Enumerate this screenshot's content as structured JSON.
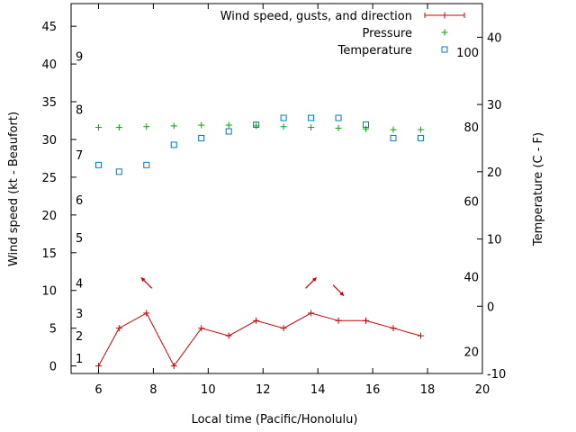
{
  "chart_data": {
    "type": "line",
    "xlabel": "Local time (Pacific/Honolulu)",
    "ylabel_left": "Wind speed (kt - Beaufort)",
    "ylabel_right": "Temperature (C - F)",
    "xlim": [
      5,
      20
    ],
    "ylim_left": [
      -1,
      48
    ],
    "ylim_right_c": [
      -10,
      45
    ],
    "x_ticks": [
      6,
      8,
      10,
      12,
      14,
      16,
      18,
      20
    ],
    "y_left_ticks": [
      0,
      5,
      10,
      15,
      20,
      25,
      30,
      35,
      40,
      45
    ],
    "y_right_ticks_c": [
      -10,
      0,
      10,
      20,
      30,
      40
    ],
    "beaufort_labels": [
      {
        "label": "1",
        "kt": 1
      },
      {
        "label": "2",
        "kt": 4
      },
      {
        "label": "3",
        "kt": 7
      },
      {
        "label": "4",
        "kt": 11
      },
      {
        "label": "5",
        "kt": 17
      },
      {
        "label": "6",
        "kt": 22
      },
      {
        "label": "7",
        "kt": 28
      },
      {
        "label": "8",
        "kt": 34
      },
      {
        "label": "9",
        "kt": 41
      }
    ],
    "fahrenheit_labels": [
      {
        "label": "20",
        "c": -6.7
      },
      {
        "label": "40",
        "c": 4.4
      },
      {
        "label": "60",
        "c": 15.6
      },
      {
        "label": "80",
        "c": 26.7
      },
      {
        "label": "100",
        "c": 37.8
      }
    ],
    "legend": [
      {
        "name": "Wind speed, gusts, and direction",
        "color": "#cc0000",
        "marker": "plus-line"
      },
      {
        "name": "Pressure",
        "color": "#00aa00",
        "marker": "plus"
      },
      {
        "name": "Temperature",
        "color": "#0077cc",
        "marker": "square"
      }
    ],
    "series": [
      {
        "name": "Wind speed, gusts, and direction",
        "axis": "left",
        "x": [
          6,
          6.75,
          7.75,
          8.75,
          9.75,
          10.75,
          11.75,
          12.75,
          13.75,
          14.75,
          15.75,
          16.75,
          17.75
        ],
        "values": [
          0,
          5,
          7,
          0,
          5,
          4,
          6,
          5,
          7,
          6,
          6,
          5,
          4
        ]
      },
      {
        "name": "Pressure",
        "axis": "left",
        "x": [
          6,
          6.75,
          7.75,
          8.75,
          9.75,
          10.75,
          11.75,
          12.75,
          13.75,
          14.75,
          15.75,
          16.75,
          17.75
        ],
        "values": [
          31.6,
          31.6,
          31.7,
          31.8,
          31.9,
          31.9,
          31.8,
          31.7,
          31.6,
          31.5,
          31.4,
          31.3,
          31.3
        ]
      },
      {
        "name": "Temperature",
        "axis": "right",
        "x": [
          6,
          6.75,
          7.75,
          8.75,
          9.75,
          10.75,
          11.75,
          12.75,
          13.75,
          14.75,
          15.75,
          16.75,
          17.75
        ],
        "values": [
          21,
          20,
          21,
          24,
          25,
          26,
          27,
          28,
          28,
          28,
          27,
          25,
          25
        ]
      }
    ],
    "direction_arrows": [
      {
        "x": 7.75,
        "kt": 11,
        "direction": "northwest"
      },
      {
        "x": 13.75,
        "kt": 11,
        "direction": "northeast"
      },
      {
        "x": 14.75,
        "kt": 10,
        "direction": "southeast"
      }
    ]
  }
}
